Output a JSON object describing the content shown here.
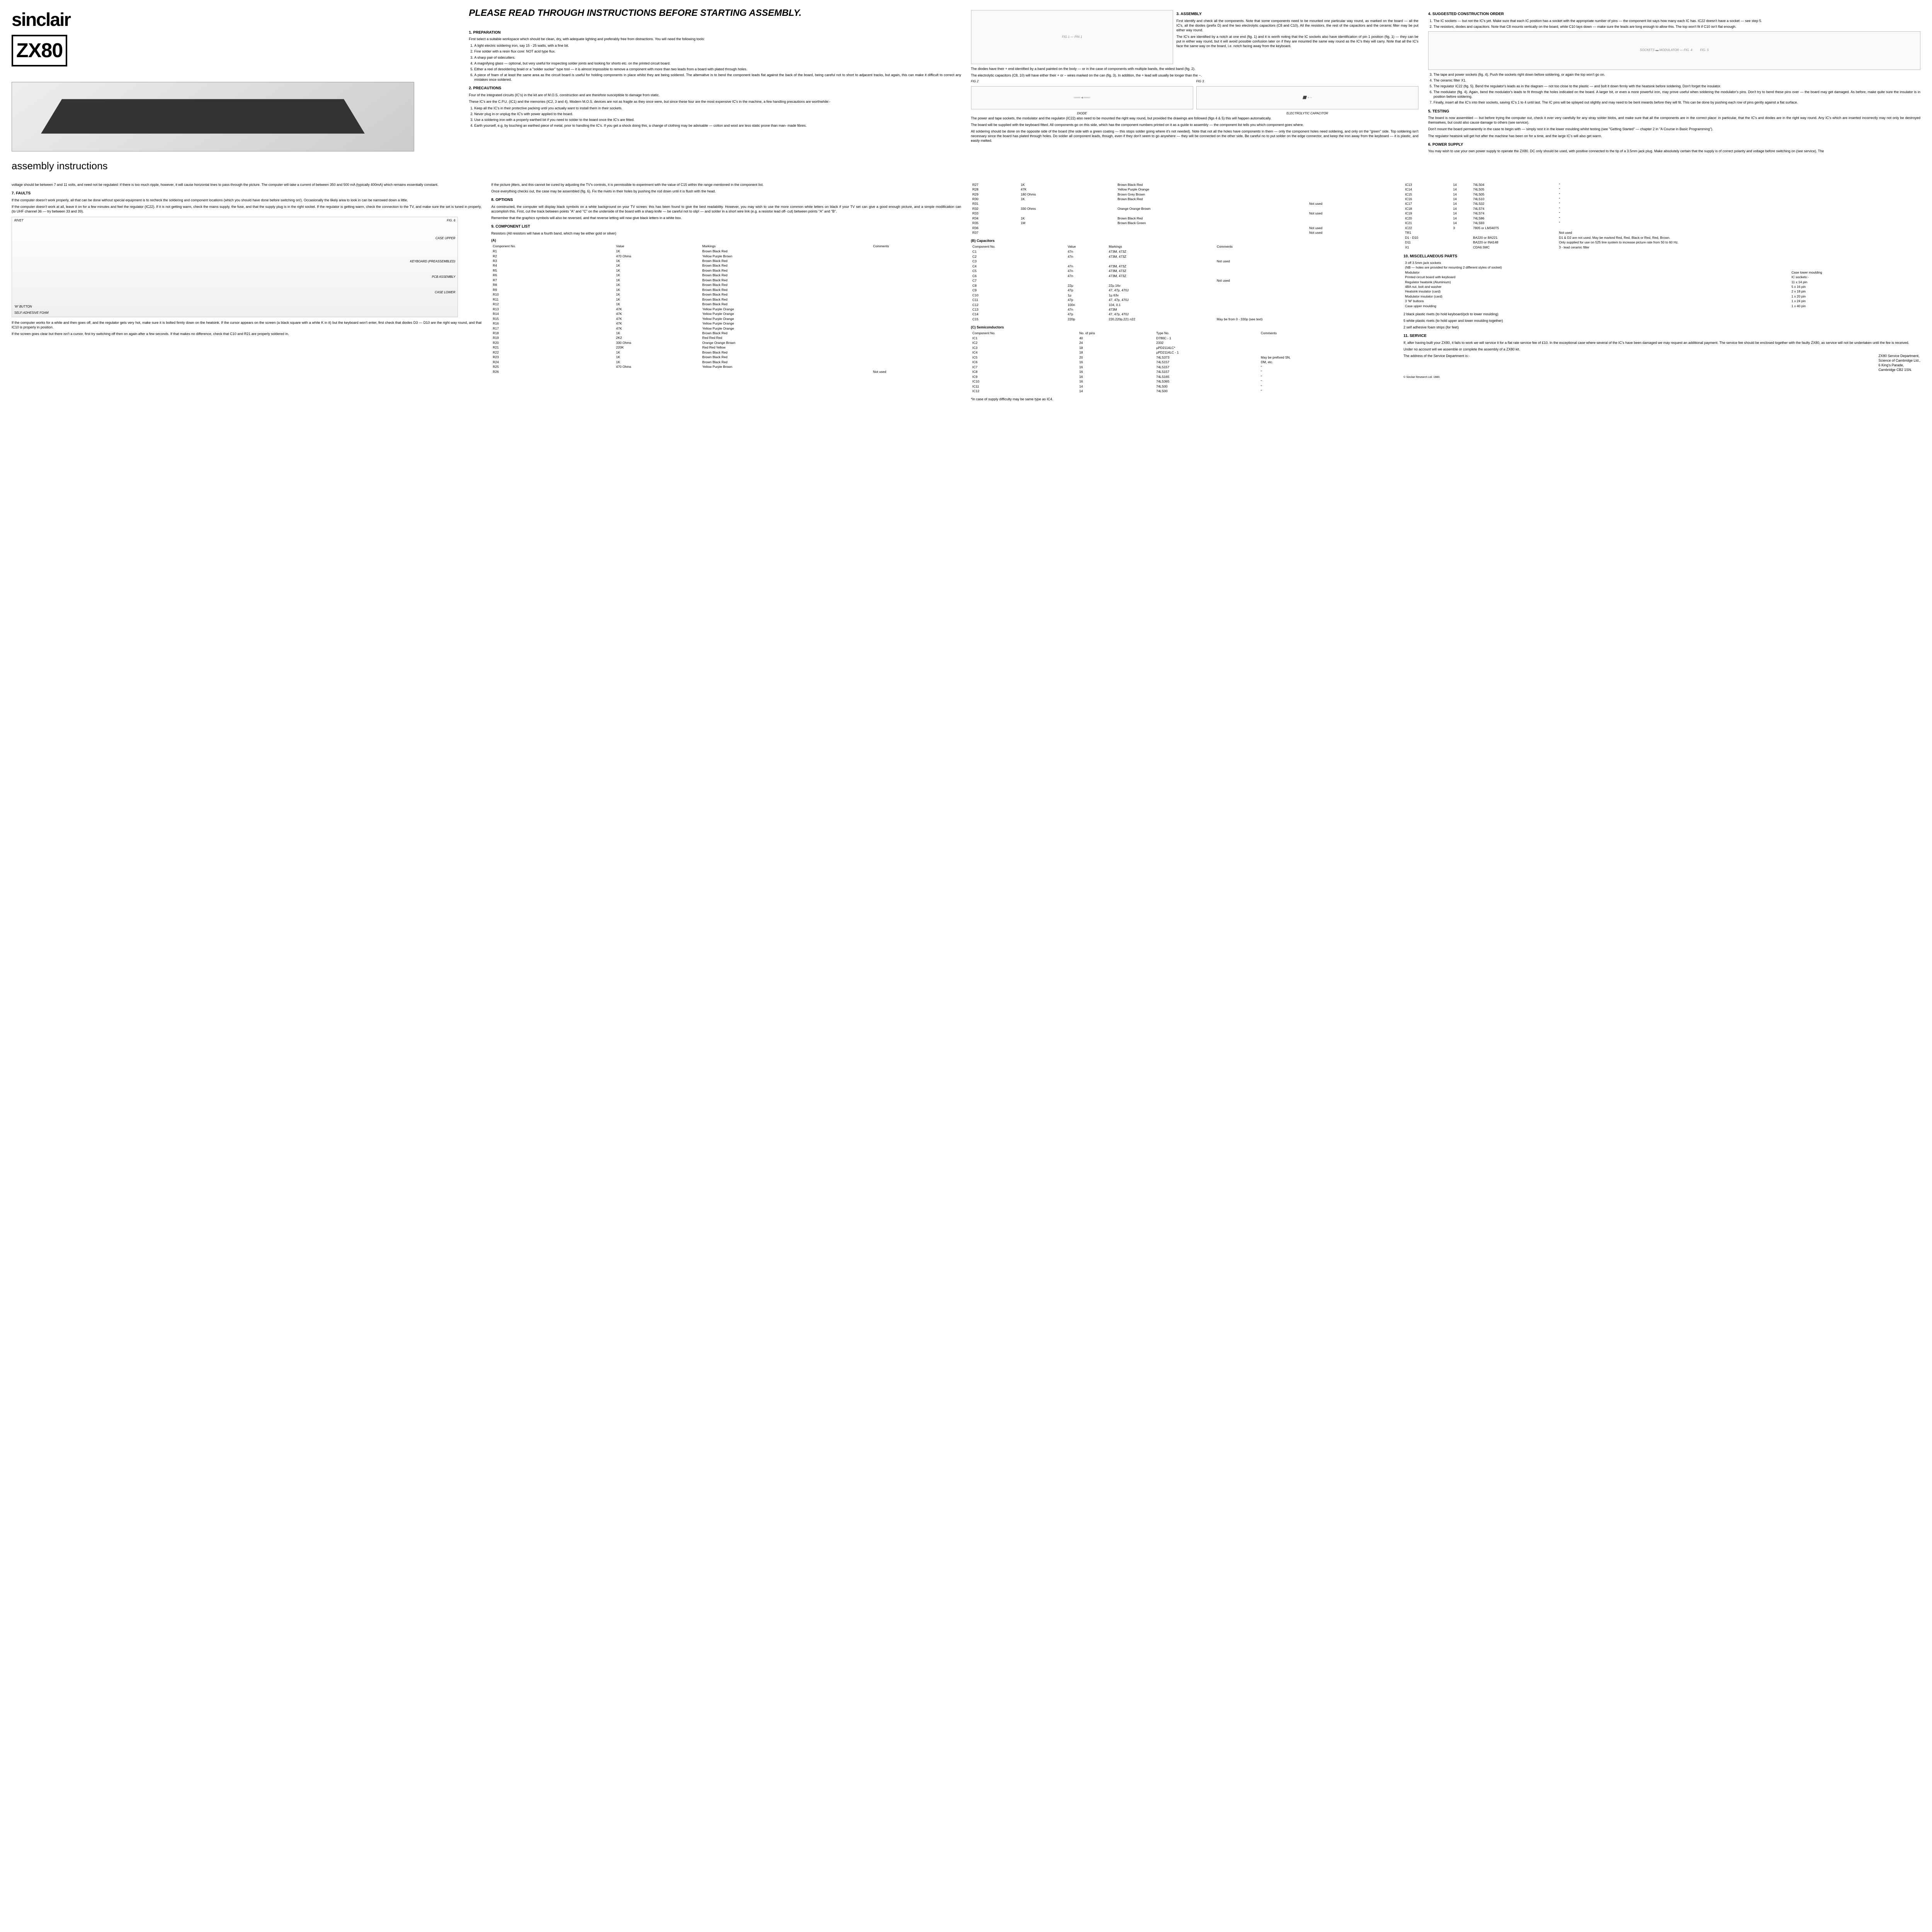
{
  "logo": {
    "brand": "sinclair",
    "model": "ZX80",
    "subtitle": "assembly instructions"
  },
  "title": "PLEASE READ THROUGH INSTRUCTIONS BEFORE STARTING ASSEMBLY.",
  "s1": {
    "h": "1. PREPARATION",
    "intro": "First select a suitable workspace which should be clean, dry, with adequate lighting and preferably free from distractions. You will need the following tools:",
    "items": [
      "A light electric soldering iron, say 15 - 25 watts, with a fine bit.",
      "Fine solder with a resin flux core: NOT acid type flux.",
      "A sharp pair of sidecutters.",
      "A magnifying glass — optional, but very useful for inspecting solder joints and looking for shorts etc. on the printed circuit board.",
      "Either a reel of desoldering braid or a \"solder sucker\" type tool — it is almost impossible to remove a component with more than two leads from a board with plated through holes.",
      "A piece of foam of at least the same area as the circuit board is useful for holding components in place whilst they are being soldered. The alternative is to bend the component leads flat against the back of the board, being careful not to short to adjacent tracks, but again, this can make it difficult to correct any mistakes once soldered."
    ]
  },
  "s2": {
    "h": "2. PRECAUTIONS",
    "p1": "Four of the integrated circuits (IC's) in the kit are of M.O.S. construction and are therefore susceptible to damage from static.",
    "p2": "These IC's are the C.P.U. (IC1) and the memories (IC2, 3 and 4). Modern M.O.S. devices are not as fragile as they once were, but since these four are the most expensive IC's in the machine, a few handling precautions are worthwhile:-",
    "items": [
      "Keep all the IC's in their protective packing until you actually want to install them in their sockets.",
      "Never plug in or unplug the IC's with power applied to the board.",
      "Use a soldering iron with a properly earthed bit if you need to solder to the board once the IC's are fitted.",
      "Earth yourself, e.g. by touching an earthed piece of metal, prior to handling the IC's. If you get a shock doing this, a change of clothing may be advisable — cotton and wool are less static prone than man- made fibres."
    ]
  },
  "s3": {
    "h": "3. ASSEMBLY",
    "p1": "First identify and check all the components. Note that some components need to be mounted one particular way round, as marked on the board — all the IC's, all the diodes (prefix D) and the two electrolytic capacitors (C8 and C10). All the resistors, the rest of the capacitors and the ceramic filter may be put either way round.",
    "p2": "The IC's are identified by a notch at one end (fig. 1) and it is worth noting that the IC sockets also have identification of pin 1 position (fig. 1) — they can be put in either way round, but it will avoid possible confusion later on if they are mounted the same way round as the IC's they will carry. Note that all the IC's face the same way on the board, i.e. notch facing away from the keyboard.",
    "p3": "The diodes have their + end identified by a band painted on the body — or in the case of components with multiple bands, the widest band (fig. 2).",
    "p4": "The electrolytic capacitors (C8, 10) will have either their + or − wires marked on the can (fig. 3). In addition, the + lead will usually be longer than the −.",
    "p5": "The power and tape sockets, the modulator and the regulator (IC22) also need to be mounted the right way round, but provided the drawings are followed (figs 4 & 5) this will happen automatically.",
    "p6": "The board will be supplied with the keyboard fitted. All components go on this side, which has the component numbers printed on it as a guide to assembly — the component list tells you which component goes where.",
    "p7": "All soldering should be done on the opposite side of the board (the side with a green coating — this stops solder going where it's not needed). Note that not all the holes have components in them — only the component holes need soldering, and only on the \"green\" side. Top soldering isn't necessary since the board has plated through holes. Do solder all component leads, though, even if they don't seem to go anywhere — they will be connected on the other side. Be careful no to put solder on the edge connector, and keep the iron away from the keyboard — it is plastic, and easily melted."
  },
  "s4": {
    "h": "4. SUGGESTED CONSTRUCTION ORDER",
    "items": [
      "The IC sockets — but not the IC's yet. Make sure that each IC position has a socket with the appropriate number of pins — the component list says how many each IC has. IC22 doesn't have a socket — see step 5.",
      "The resistors, diodes and capacitors. Note that C8 mounts vertically on the board, while C10 lays down — make sure the leads are long enough to allow this. The top won't fit if C10 isn't flat enough.",
      "The tape and power sockets (fig. 4). Push the sockets right down before soldering, or again the top won't go on.",
      "The ceramic filter X1.",
      "The regulator IC22 (fig. 5). Bend the regulator's leads as in the diagram — not too close to the plastic — and bolt it down firmly with the heatsink before soldering. Don't forget the insulator.",
      "The modulator (fig. 4). Again, bend the modulator's leads to fit through the holes indicated on the board. A larger bit, or even a more powerful iron, may prove useful when soldering the modulator's pins. Don't try to bend these pins over — the board may get damaged. As before, make quite sure the insulator is in position before soldering.",
      "Finally, insert all the IC's into their sockets, saving IC's 1 to 4 until last. The IC pins will be splayed out slightly and may need to be bent inwards before they will fit. This can be done by pushing each row of pins gently against a flat surface."
    ]
  },
  "s5": {
    "h": "5. TESTING",
    "p1": "The board is now assembled — but before trying the computer out, check it over very carefully for any stray solder blobs, and make sure that all the components are in the correct place: in particular, that the IC's and diodes are in the right way round. Any IC's which are inserted incorrectly may not only be destroyed themselves, but could also cause damage to others (see service).",
    "p2": "Don't mount the board permanently in the case to begin with — simply rest it in the lower moulding whilst testing (see \"Getting Started\" — chapter 2 in \"A Course in Basic Programming\").",
    "p3": "The regulator heatsink will get hot after the machine has been on for a time, and the large IC's will also get warm."
  },
  "s6": {
    "h": "6. POWER SUPPLY",
    "p1": "You may wish to use your own power supply to operate the ZX80. DC only should be used, with positive connected to the tip of a 3.5mm jack plug. Make absolutely certain that the supply is of correct polarity and voltage before switching on (see service). The"
  },
  "s6cont": "voltage should be between 7 and 11 volts, and need not be regulated: if there is too much ripple, however, it will cause horizontal lines to pass through the picture. The computer will take a current of between 350 and 500 mA (typically 400mA) which remains essentially constant.",
  "s7": {
    "h": "7. FAULTS",
    "p1": "If the computer doesn't work properly, all that can be done without special equipment is to recheck the soldering and component locations (which you should have done before switching on!). Occasionally the likely area to look in can be narrowed down a little.",
    "p2": "If the computer doesn't work at all, leave it on for a few minutes and feel the regulator (IC22). If it is not getting warm, check the mains supply, the fuse, and that the supply plug is in the right socket. If the regulator is getting warm, check the connection to the TV, and make sure the set is tuned in properly, (to UHF channel 36 — try between 33 and 39).",
    "p3": "If the computer works for a while and then goes off, and the regulator gets very hot, make sure it is bolted firmly down on the heatsink. If the cursor appears on the screen (a black square with a white K in it) but the keyboard won't enter, first check that diodes D3 — D10 are the right way round, and that IC10 is properly in position.",
    "p4": "If the screen goes clear but there isn't a cursor, first try switching off then on again after a few seconds. If that makes no difference, check that C10 and R21 are properly soldered in."
  },
  "s8p1": "If the picture jitters, and this cannot be cured by adjusting the TV's controls, it is permissible to experiment with the value of C15 within the range mentioned in the component list.",
  "s8p2": "Once everything checks out, the case may be assembled (fig. 6). Fix the rivets in their holes by pushing the rod down until it is flush with the head.",
  "s8": {
    "h": "8. OPTIONS",
    "p1": "As constructed, the computer will display black symbols on a white background on your TV screen: this has been found to give the best readability. However, you may wish to use the more common white letters on black if your TV set can give a good enough picture, and a simple modification can accomplish this. First, cut the track between points \"A\" and \"C\" on the underside of the board with a sharp knife — be careful not to slip! — and solder in a short wire link (e.g. a resistor lead off- cut) between points \"A\" and \"B\".",
    "p2": "Remember that the graphics symbols will also be reversed, and that reverse letting will now give black letters in a white box."
  },
  "s9": {
    "h": "9. COMPONENT LIST",
    "note": "Resistors (All resistors will have a fourth band, which may be either gold or silver)",
    "a": "(A)",
    "th": [
      "Component No.",
      "Value",
      "Markings",
      "Comments"
    ]
  },
  "resistors": [
    [
      "R1",
      "1K",
      "Brown Black Red",
      ""
    ],
    [
      "R2",
      "470 Ohms",
      "Yellow Purple Brown",
      ""
    ],
    [
      "R3",
      "1K",
      "Brown Black Red",
      ""
    ],
    [
      "R4",
      "1K",
      "Brown Black Red",
      ""
    ],
    [
      "R5",
      "1K",
      "Brown Black Red",
      ""
    ],
    [
      "R6",
      "1K",
      "Brown Black Red",
      ""
    ],
    [
      "R7",
      "1K",
      "Brown Black Red",
      ""
    ],
    [
      "R8",
      "1K",
      "Brown Black Red",
      ""
    ],
    [
      "R9",
      "1K",
      "Brown Black Red",
      ""
    ],
    [
      "R10",
      "1K",
      "Brown Black Red",
      ""
    ],
    [
      "R11",
      "1K",
      "Brown Black Red",
      ""
    ],
    [
      "R12",
      "1K",
      "Brown Black Red",
      ""
    ],
    [
      "R13",
      "47K",
      "Yellow Purple Orange",
      ""
    ],
    [
      "R14",
      "47K",
      "Yellow Purple Orange",
      ""
    ],
    [
      "R15",
      "47K",
      "Yellow Purple Orange",
      ""
    ],
    [
      "R16",
      "47K",
      "Yellow Purple Orange",
      ""
    ],
    [
      "R17",
      "47K",
      "Yellow Purple Orange",
      ""
    ],
    [
      "R18",
      "1K",
      "Brown Black Red",
      ""
    ],
    [
      "R19",
      "2K2",
      "Red Red Red",
      ""
    ],
    [
      "R20",
      "330 Ohms",
      "Orange Orange Brown",
      ""
    ],
    [
      "R21",
      "220K",
      "Red Red Yellow",
      ""
    ],
    [
      "R22",
      "1K",
      "Brown Black Red",
      ""
    ],
    [
      "R23",
      "1K",
      "Brown Black Red",
      ""
    ],
    [
      "R24",
      "1K",
      "Brown Black Red",
      ""
    ],
    [
      "R25",
      "470 Ohms",
      "Yellow Purple Brown",
      ""
    ],
    [
      "R26",
      "",
      "",
      "Not used"
    ]
  ],
  "resistors2": [
    [
      "R27",
      "1K",
      "Brown Black Red",
      ""
    ],
    [
      "R28",
      "47K",
      "Yellow Purple Orange",
      ""
    ],
    [
      "R29",
      "180 Ohms",
      "Brown Grey Brown",
      ""
    ],
    [
      "R30",
      "1K",
      "Brown Black Red",
      ""
    ],
    [
      "R31",
      "",
      "",
      "Not used"
    ],
    [
      "R32",
      "330 Ohms",
      "Orange Orange Brown",
      ""
    ],
    [
      "R33",
      "",
      "",
      "Not used"
    ],
    [
      "R34",
      "1K",
      "Brown Black Red",
      ""
    ],
    [
      "R35",
      "1M",
      "Brown Black Green",
      ""
    ],
    [
      "R36",
      "",
      "",
      "Not used"
    ],
    [
      "R37",
      "",
      "",
      "Not used"
    ]
  ],
  "capsH": "(B) Capacitors",
  "capsTh": [
    "Component No.",
    "Value",
    "Markings",
    "Comments"
  ],
  "caps": [
    [
      "C1",
      "47n",
      "473M, 473Z",
      ""
    ],
    [
      "C2",
      "47n",
      "473M, 473Z",
      ""
    ],
    [
      "C3",
      "",
      "",
      "Not used"
    ],
    [
      "C4",
      "47n",
      "473M, 473Z",
      ""
    ],
    [
      "C5",
      "47n",
      "473M, 473Z",
      ""
    ],
    [
      "C6",
      "47n",
      "473M, 473Z",
      ""
    ],
    [
      "C7",
      "",
      "",
      "Not used"
    ],
    [
      "C8",
      "22µ",
      "22µ 16v",
      ""
    ],
    [
      "C9",
      "47p",
      "47, 47p, 470J",
      ""
    ],
    [
      "C10",
      "1µ",
      "1µ 63v",
      ""
    ],
    [
      "C11",
      "47p",
      "47, 47p, 470J",
      ""
    ],
    [
      "C12",
      "100n",
      "104, 0.1",
      ""
    ],
    [
      "C13",
      "47n",
      "473M",
      ""
    ],
    [
      "C14",
      "47p",
      "47, 47p, 470J",
      ""
    ],
    [
      "C15",
      "220p",
      "220,220p,221 n22",
      "May be from 0 - 330p (see text)"
    ]
  ],
  "semiH": "(C) Semiconductors",
  "semiTh": [
    "Component No.",
    "No. of pins",
    "Type No.",
    "Comments"
  ],
  "semi": [
    [
      "IC1",
      "40",
      "D780C - 1",
      ""
    ],
    [
      "IC2",
      "24",
      "2332",
      ""
    ],
    [
      "IC3",
      "18",
      "µPD2114LC*",
      ""
    ],
    [
      "IC4",
      "18",
      "µPD2114LC - 1",
      ""
    ],
    [
      "IC5",
      "20",
      "74LS373",
      "May be prefixed SN,"
    ],
    [
      "IC6",
      "16",
      "74LS157",
      "DM, etc."
    ],
    [
      "IC7",
      "16",
      "74LS157",
      "\""
    ],
    [
      "IC8",
      "16",
      "74LS157",
      "\""
    ],
    [
      "IC9",
      "16",
      "74LS165",
      "\""
    ],
    [
      "IC10",
      "16",
      "74LS365",
      "\""
    ],
    [
      "IC11",
      "14",
      "74LS00",
      "\""
    ],
    [
      "IC12",
      "14",
      "74LS00",
      "\""
    ]
  ],
  "seminote": "*In case of supply difficulty may be same type as IC4.",
  "semi2": [
    [
      "IC13",
      "14",
      "74LS04",
      "\""
    ],
    [
      "IC14",
      "14",
      "74LS05",
      "\""
    ],
    [
      "IC15",
      "14",
      "74LS05",
      "\""
    ],
    [
      "IC16",
      "14",
      "74LS10",
      "\""
    ],
    [
      "IC17",
      "14",
      "74LS32",
      "\""
    ],
    [
      "IC18",
      "14",
      "74LS74",
      "\""
    ],
    [
      "IC19",
      "14",
      "74LS74",
      "\""
    ],
    [
      "IC20",
      "14",
      "74LS86",
      "\""
    ],
    [
      "IC21",
      "14",
      "74LS93",
      "\""
    ],
    [
      "IC22",
      "3",
      "7805 or LM340T5",
      ""
    ],
    [
      "TR1",
      "",
      "",
      "Not used"
    ],
    [
      "D1 - D10",
      "",
      "BA220 or BA221",
      "D1 & D2 are not used. May be marked Red, Red, Black or Red, Red, Brown."
    ],
    [
      "D11",
      "",
      "BA220 or IN4148",
      "Only supplied for use on 525 line system to increase picture rate from 50 to 60 Hz."
    ],
    [
      "X1",
      "",
      "CDA6.5MC",
      "3 - lead ceramic filter"
    ]
  ],
  "s10": {
    "h": "10. MISCELLANEOUS PARTS"
  },
  "misc1": [
    [
      "3 off 3.5mm jack sockets",
      ""
    ],
    [
      "(NB — holes are provided for mounting 2 different styles of socket)",
      ""
    ],
    [
      "Modulator",
      "Case lower moulding"
    ],
    [
      "Printed circuit board with keyboard",
      "IC sockets:-"
    ],
    [
      "Regulator heatsink (Aluminium)",
      "11 x 14 pin"
    ],
    [
      "4BA nut, bolt and washer",
      "5 x 16 pin"
    ],
    [
      "Heatsink insulator (card)",
      "2 x 18 pin"
    ],
    [
      "Modulator insulator (card)",
      "1 x 20 pin"
    ],
    [
      "3 'W' buttons",
      "1 x 24 pin"
    ],
    [
      "Case upper moulding",
      "1 x 40 pin"
    ]
  ],
  "misc2": [
    "2 black plastic rivets (to hold keyboard/pcb to lower moulding)",
    "5 white plastic rivets (to hold upper and lower moulding together)",
    "2 self adhesive foam strips (for feet)"
  ],
  "s11": {
    "h": "11. SERVICE",
    "p1": "If, after having built your ZX80, it fails to work we will service it for a flat rate service fee of £10. In the exceptional case where several of the IC's have been damaged we may request an additional payment. The service fee should be enclosed together with the faulty ZX80, as service will not be undertaken until the fee is received.",
    "p2": "Under no account will we assemble or complete the assembly of a ZX80 kit.",
    "p3": "The address of the Service Department is:-",
    "addr": [
      "ZX80 Service Department,",
      "Science of Cambridge Ltd.,",
      "6 King's Parade,",
      "Cambridge CB2 1SN."
    ]
  },
  "figs": {
    "f1": "FIG 1 — PIN 1",
    "f2": "FIG 2",
    "f3": "FIG 3",
    "diode": "DIODE",
    "elcap": "ELECTROLYTIC CAPACITOR",
    "f4": "FIG. 4",
    "f5": "FIG. 5",
    "f6": "FIG. 6",
    "sockets": "SOCKETS",
    "modulator": "MODULATOR",
    "rivet": "RIVET",
    "caseupper": "CASE UPPER",
    "keyboard": "KEYBOARD (PREASSEMBLED)",
    "pcb": "PCB ASSEMBLY",
    "caselower": "CASE LOWER",
    "wbutton": "'W' BUTTON",
    "foam": "SELF-ADHESIVE FOAM"
  },
  "copyright": "© Sinclair Research Ltd. 1980."
}
